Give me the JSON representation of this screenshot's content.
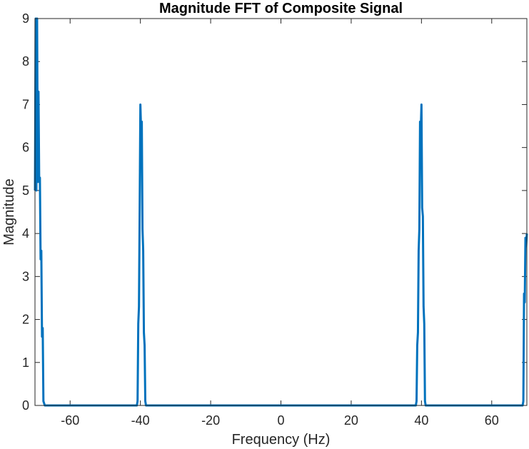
{
  "chart_data": {
    "type": "line",
    "title": "Magnitude FFT of Composite Signal",
    "xlabel": "Frequency (Hz)",
    "ylabel": "Magnitude",
    "xlim": [
      -70,
      70
    ],
    "ylim": [
      0,
      9
    ],
    "xticks": [
      -60,
      -40,
      -20,
      0,
      20,
      40,
      60
    ],
    "yticks": [
      0,
      1,
      2,
      3,
      4,
      5,
      6,
      7,
      8,
      9
    ],
    "xtick_labels": [
      "-60",
      "-40",
      "-20",
      "0",
      "20",
      "40",
      "60"
    ],
    "ytick_labels": [
      "0",
      "1",
      "2",
      "3",
      "4",
      "5",
      "6",
      "7",
      "8",
      "9"
    ],
    "grid": false,
    "colors": {
      "series": "#0072BD",
      "axes": "#262626"
    },
    "series": [
      {
        "x": [
          -70,
          -69.8,
          -69.6,
          -69.4,
          -69.2,
          -69.0,
          -68.8,
          -68.6,
          -68.4,
          -68.2,
          -68.0,
          -67.8,
          -67.6,
          -67.4,
          -67.2,
          -67.0,
          -66.8,
          -66.5,
          -41.0,
          -40.8,
          -40.6,
          -40.4,
          -40.2,
          -40.0,
          -39.8,
          -39.6,
          -39.4,
          -39.2,
          -39.0,
          -38.8,
          -38.6,
          -38.4,
          -38.0,
          38.4,
          38.6,
          38.8,
          39.0,
          39.2,
          39.4,
          39.6,
          39.8,
          40.0,
          40.2,
          40.4,
          40.6,
          40.8,
          41.0,
          41.2,
          41.6,
          68.8,
          69.0,
          69.2,
          69.4,
          69.6,
          69.8,
          70
        ],
        "y": [
          5.0,
          9.0,
          5.0,
          9.0,
          5.2,
          7.3,
          5.2,
          5.3,
          3.4,
          3.6,
          1.6,
          1.8,
          0.1,
          0.05,
          0,
          0,
          0,
          0,
          0,
          0.1,
          1.9,
          2.3,
          4.6,
          7.0,
          6.4,
          6.6,
          4.1,
          3.6,
          1.7,
          1.4,
          0.1,
          0,
          0,
          0,
          0.1,
          1.4,
          1.7,
          3.6,
          4.1,
          6.6,
          6.4,
          7.0,
          4.6,
          4.4,
          2.3,
          1.9,
          0.1,
          0,
          0,
          0,
          0.1,
          2.6,
          2.4,
          3.9,
          3.7,
          4.0
        ]
      }
    ]
  }
}
